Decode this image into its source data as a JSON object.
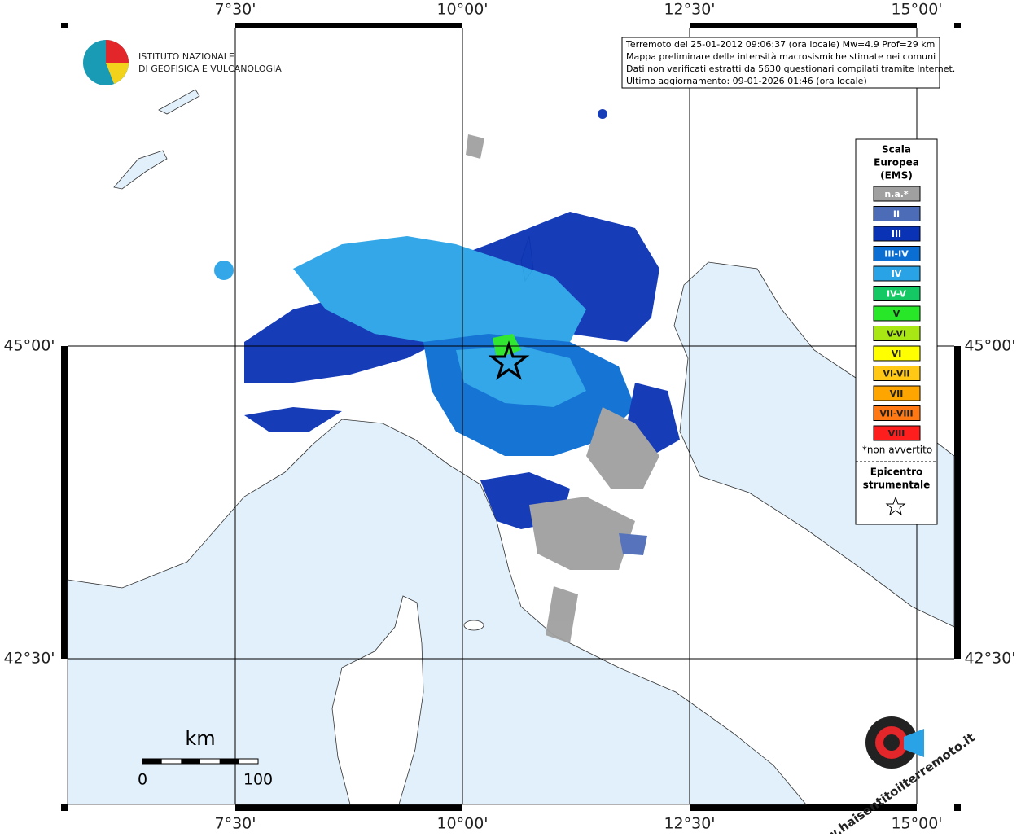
{
  "header": {
    "logo_line1": "ISTITUTO NAZIONALE",
    "logo_line2": "DI GEOFISICA E VULCANOLOGIA"
  },
  "info": [
    "Terremoto del 25-01-2012 09:06:37 (ora locale) Mw=4.9 Prof=29 km",
    "Mappa preliminare delle intensità macrosismiche stimate nei comuni",
    "Dati non verificati estratti da 5630 questionari compilati tramite Internet.",
    "Ultimo aggiornamento: 09-01-2026 01:46 (ora locale)"
  ],
  "longitudes": [
    "7°30'",
    "10°00'",
    "12°30'",
    "15°00'"
  ],
  "latitudes": [
    "45°00'",
    "42°30'"
  ],
  "legend": {
    "title": [
      "Scala",
      "Europea",
      "(EMS)"
    ],
    "items": [
      {
        "label": "n.a.*",
        "color": "#a0a0a0"
      },
      {
        "label": "II",
        "color": "#4d6cb8"
      },
      {
        "label": "III",
        "color": "#0a32b4"
      },
      {
        "label": "III-IV",
        "color": "#0a6ed2"
      },
      {
        "label": "IV",
        "color": "#29a3e6"
      },
      {
        "label": "IV-V",
        "color": "#14c864"
      },
      {
        "label": "V",
        "color": "#28e628"
      },
      {
        "label": "V-VI",
        "color": "#a8e614"
      },
      {
        "label": "VI",
        "color": "#ffff00"
      },
      {
        "label": "VI-VII",
        "color": "#ffc814"
      },
      {
        "label": "VII",
        "color": "#ffa500"
      },
      {
        "label": "VII-VIII",
        "color": "#ff7814"
      },
      {
        "label": "VIII",
        "color": "#ff1e1e"
      }
    ],
    "note": "*non avvertito",
    "epicentre": [
      "Epicentro",
      "strumentale"
    ]
  },
  "scale": {
    "unit": "km",
    "start": "0",
    "end": "100"
  },
  "watermark": "www.haisentitoilterremoto.it"
}
